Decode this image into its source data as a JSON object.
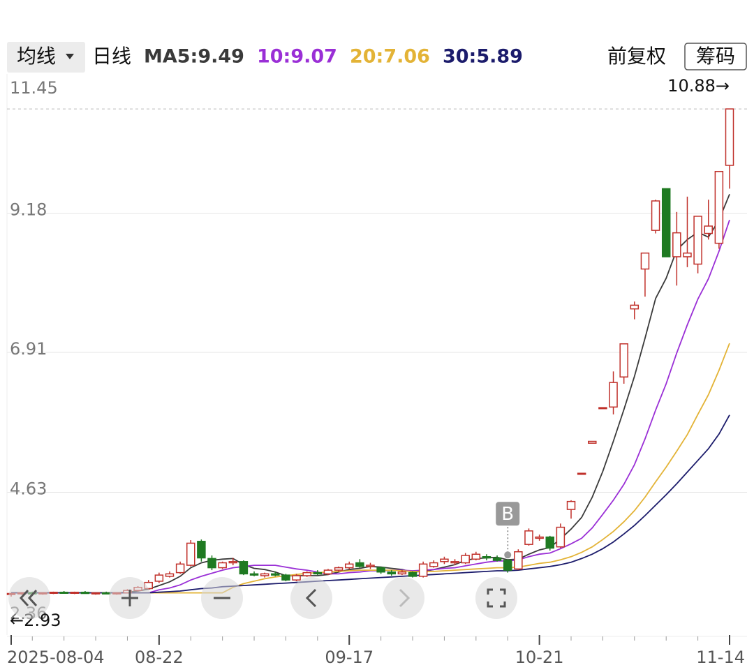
{
  "toolbar": {
    "ma_menu": "均线",
    "period": "日线",
    "adjust": "前复权",
    "chips": "筹码"
  },
  "chart_data": {
    "type": "candlestick",
    "categories": [
      "2025-08-04",
      null,
      null,
      null,
      null,
      null,
      null,
      null,
      null,
      null,
      null,
      null,
      null,
      null,
      "08-22",
      null,
      null,
      null,
      null,
      null,
      null,
      null,
      null,
      null,
      null,
      null,
      null,
      null,
      null,
      null,
      null,
      null,
      "09-17",
      null,
      null,
      null,
      null,
      null,
      null,
      null,
      null,
      null,
      null,
      null,
      null,
      null,
      null,
      null,
      null,
      null,
      "10-21",
      null,
      null,
      null,
      null,
      null,
      null,
      null,
      null,
      null,
      null,
      null,
      null,
      null,
      null,
      null,
      null,
      null,
      "11-14"
    ],
    "open": [
      2.97,
      2.98,
      2.99,
      2.98,
      2.99,
      3.0,
      2.99,
      3.0,
      2.98,
      2.99,
      2.98,
      2.99,
      3.03,
      3.06,
      3.18,
      3.26,
      3.32,
      3.44,
      3.83,
      3.55,
      3.4,
      3.48,
      3.5,
      3.3,
      3.27,
      3.3,
      3.28,
      3.2,
      3.27,
      3.32,
      3.3,
      3.36,
      3.4,
      3.48,
      3.42,
      3.4,
      3.33,
      3.3,
      3.32,
      3.26,
      3.42,
      3.5,
      3.48,
      3.48,
      3.54,
      3.58,
      3.56,
      3.52,
      3.38,
      3.78,
      3.88,
      3.9,
      3.74,
      4.35,
      4.93,
      5.43,
      6.0,
      6.02,
      6.51,
      7.62,
      8.27,
      8.9,
      9.58,
      8.47,
      8.47,
      8.35,
      8.85,
      8.69,
      9.96
    ],
    "high": [
      2.99,
      3.0,
      3.01,
      3.0,
      3.01,
      3.02,
      3.01,
      3.02,
      3.0,
      3.01,
      3.0,
      3.05,
      3.1,
      3.2,
      3.32,
      3.34,
      3.5,
      3.85,
      3.86,
      3.6,
      3.5,
      3.56,
      3.52,
      3.34,
      3.32,
      3.34,
      3.3,
      3.3,
      3.34,
      3.36,
      3.38,
      3.42,
      3.5,
      3.54,
      3.48,
      3.42,
      3.36,
      3.36,
      3.34,
      3.5,
      3.52,
      3.58,
      3.54,
      3.64,
      3.66,
      3.62,
      3.6,
      3.54,
      3.7,
      4.04,
      3.94,
      3.92,
      4.12,
      4.5,
      4.94,
      5.46,
      6.01,
      6.6,
      7.05,
      7.74,
      8.53,
      9.4,
      9.58,
      9.2,
      9.45,
      9.13,
      9.4,
      9.86,
      10.88
    ],
    "low": [
      2.93,
      2.96,
      2.97,
      2.96,
      2.97,
      2.98,
      2.97,
      2.98,
      2.96,
      2.97,
      2.96,
      2.98,
      3.01,
      3.04,
      3.15,
      3.24,
      3.3,
      3.42,
      3.5,
      3.36,
      3.38,
      3.44,
      3.28,
      3.26,
      3.24,
      3.26,
      3.18,
      3.18,
      3.25,
      3.28,
      3.28,
      3.33,
      3.37,
      3.4,
      3.38,
      3.3,
      3.27,
      3.28,
      3.24,
      3.24,
      3.4,
      3.46,
      3.44,
      3.46,
      3.52,
      3.52,
      3.5,
      3.32,
      3.36,
      3.76,
      3.84,
      3.68,
      3.72,
      4.2,
      4.93,
      5.43,
      6.0,
      5.9,
      6.4,
      7.45,
      7.82,
      8.85,
      8.47,
      8.0,
      8.3,
      8.2,
      8.75,
      8.6,
      9.58
    ],
    "close": [
      2.98,
      2.99,
      2.98,
      2.99,
      3.0,
      2.99,
      3.0,
      2.98,
      2.99,
      2.98,
      2.99,
      3.03,
      3.08,
      3.16,
      3.28,
      3.3,
      3.46,
      3.8,
      3.56,
      3.4,
      3.48,
      3.5,
      3.3,
      3.28,
      3.3,
      3.28,
      3.2,
      3.27,
      3.32,
      3.3,
      3.36,
      3.4,
      3.46,
      3.42,
      3.44,
      3.33,
      3.3,
      3.33,
      3.26,
      3.46,
      3.48,
      3.54,
      3.5,
      3.6,
      3.62,
      3.56,
      3.52,
      3.36,
      3.66,
      4.0,
      3.9,
      3.72,
      4.06,
      4.48,
      4.94,
      5.46,
      6.01,
      6.42,
      7.05,
      7.68,
      8.53,
      9.38,
      8.47,
      8.86,
      8.53,
      9.13,
      8.97,
      9.86,
      10.88
    ],
    "up_color": "#c0302a",
    "down_color": "#1f7a22",
    "series": [
      {
        "name": "MA5:9.49",
        "color": "#3a3a3a",
        "values": [
          2.99,
          2.99,
          2.99,
          2.99,
          2.99,
          2.99,
          2.99,
          2.99,
          2.99,
          2.99,
          2.99,
          3.0,
          3.02,
          3.05,
          3.11,
          3.17,
          3.26,
          3.4,
          3.48,
          3.52,
          3.54,
          3.55,
          3.45,
          3.39,
          3.37,
          3.33,
          3.27,
          3.27,
          3.27,
          3.27,
          3.29,
          3.33,
          3.37,
          3.39,
          3.42,
          3.41,
          3.39,
          3.37,
          3.33,
          3.34,
          3.37,
          3.41,
          3.45,
          3.52,
          3.55,
          3.56,
          3.57,
          3.53,
          3.54,
          3.62,
          3.69,
          3.73,
          3.87,
          4.03,
          4.22,
          4.55,
          4.97,
          5.46,
          5.98,
          6.52,
          7.14,
          7.79,
          8.12,
          8.58,
          8.75,
          8.87,
          8.79,
          9.07,
          9.49
        ]
      },
      {
        "name": "10:9.07",
        "color": "#9a2fd6",
        "values": [
          2.99,
          2.99,
          2.99,
          2.99,
          2.99,
          2.99,
          2.99,
          2.99,
          2.99,
          2.99,
          2.99,
          2.99,
          2.99,
          2.99,
          3.04,
          3.07,
          3.12,
          3.2,
          3.26,
          3.31,
          3.36,
          3.4,
          3.42,
          3.44,
          3.44,
          3.44,
          3.41,
          3.38,
          3.36,
          3.33,
          3.3,
          3.3,
          3.32,
          3.33,
          3.35,
          3.35,
          3.36,
          3.36,
          3.35,
          3.36,
          3.37,
          3.39,
          3.4,
          3.43,
          3.46,
          3.49,
          3.51,
          3.51,
          3.53,
          3.58,
          3.62,
          3.64,
          3.71,
          3.79,
          3.88,
          4.05,
          4.27,
          4.5,
          4.76,
          5.08,
          5.5,
          5.97,
          6.4,
          6.9,
          7.36,
          7.78,
          8.11,
          8.56,
          9.07
        ]
      },
      {
        "name": "20:7.06",
        "color": "#e3b336",
        "values": [
          2.99,
          2.99,
          2.99,
          2.99,
          2.99,
          2.99,
          2.99,
          2.99,
          2.99,
          2.99,
          2.99,
          2.99,
          2.99,
          2.99,
          2.99,
          2.99,
          2.99,
          2.99,
          2.99,
          2.99,
          2.99,
          3.08,
          3.14,
          3.18,
          3.22,
          3.25,
          3.27,
          3.29,
          3.31,
          3.32,
          3.33,
          3.34,
          3.35,
          3.36,
          3.36,
          3.36,
          3.36,
          3.35,
          3.34,
          3.34,
          3.34,
          3.35,
          3.36,
          3.37,
          3.38,
          3.39,
          3.4,
          3.4,
          3.41,
          3.44,
          3.47,
          3.49,
          3.53,
          3.58,
          3.65,
          3.74,
          3.86,
          3.99,
          4.15,
          4.33,
          4.55,
          4.8,
          5.04,
          5.3,
          5.57,
          5.9,
          6.22,
          6.62,
          7.06
        ]
      },
      {
        "name": "30:5.89",
        "color": "#1b1b6b",
        "values": [
          2.99,
          2.99,
          2.99,
          2.99,
          2.99,
          2.99,
          2.99,
          2.99,
          2.99,
          2.99,
          2.99,
          2.99,
          2.99,
          2.99,
          3.0,
          3.01,
          3.02,
          3.04,
          3.06,
          3.07,
          3.09,
          3.1,
          3.11,
          3.12,
          3.13,
          3.14,
          3.15,
          3.16,
          3.17,
          3.18,
          3.19,
          3.2,
          3.21,
          3.22,
          3.23,
          3.24,
          3.25,
          3.26,
          3.27,
          3.28,
          3.29,
          3.3,
          3.31,
          3.32,
          3.33,
          3.34,
          3.35,
          3.35,
          3.36,
          3.38,
          3.4,
          3.42,
          3.45,
          3.49,
          3.55,
          3.62,
          3.71,
          3.82,
          3.95,
          4.09,
          4.25,
          4.42,
          4.59,
          4.77,
          4.96,
          5.15,
          5.34,
          5.58,
          5.89
        ]
      }
    ],
    "ylim": [
      2.36,
      11.45
    ],
    "yticks": [
      11.45,
      9.18,
      6.91,
      4.63,
      2.36
    ],
    "grid": true,
    "annotations": {
      "high": "10.88→",
      "low": "←2.93",
      "signal": "B"
    }
  }
}
